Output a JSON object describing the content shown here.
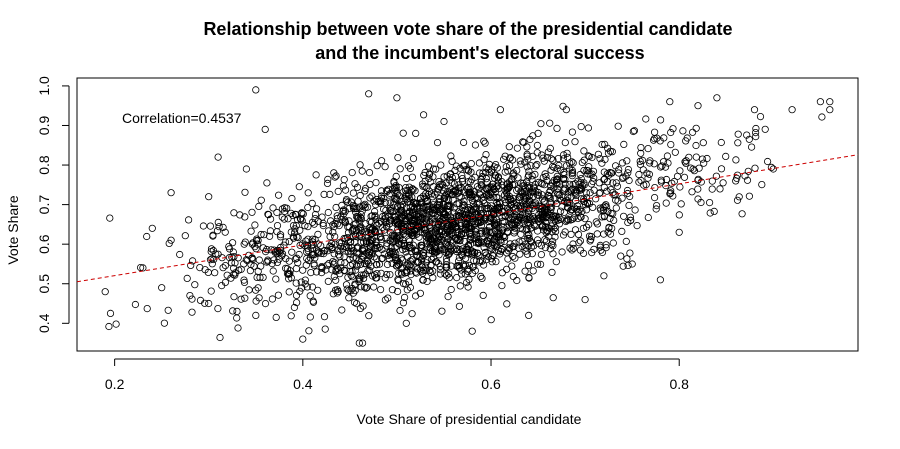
{
  "chart_data": {
    "type": "scatter",
    "title_line1": "Relationship between vote share of the presidential candidate",
    "title_line2": "and the incumbent's electoral success",
    "xlabel": "Vote Share of presidential candidate",
    "ylabel": "Vote Share",
    "xlim": [
      0.16,
      0.99
    ],
    "ylim": [
      0.33,
      1.02
    ],
    "x_ticks": [
      "0.2",
      "0.4",
      "0.6",
      "0.8"
    ],
    "y_ticks": [
      "0.4",
      "0.5",
      "0.6",
      "0.7",
      "0.8",
      "0.9",
      "1.0"
    ],
    "annotation": "Correlation=0.4537",
    "grid": false,
    "legend": "none",
    "regression_line": {
      "x": [
        0.16,
        0.99
      ],
      "y": [
        0.505,
        0.826
      ],
      "color": "#cc0000",
      "style": "dashed"
    },
    "point_color": "#000000",
    "point_style": "open circle",
    "approx_point_count": 2400,
    "points_sample": [
      [
        0.19,
        0.48
      ],
      [
        0.23,
        0.54
      ],
      [
        0.24,
        0.64
      ],
      [
        0.25,
        0.49
      ],
      [
        0.26,
        0.61
      ],
      [
        0.26,
        0.73
      ],
      [
        0.28,
        0.47
      ],
      [
        0.3,
        0.45
      ],
      [
        0.3,
        0.72
      ],
      [
        0.31,
        0.82
      ],
      [
        0.33,
        0.43
      ],
      [
        0.34,
        0.79
      ],
      [
        0.35,
        0.99
      ],
      [
        0.35,
        0.42
      ],
      [
        0.36,
        0.89
      ],
      [
        0.4,
        0.36
      ],
      [
        0.46,
        0.35
      ],
      [
        0.47,
        0.98
      ],
      [
        0.5,
        0.97
      ],
      [
        0.51,
        0.4
      ],
      [
        0.52,
        0.88
      ],
      [
        0.55,
        0.91
      ],
      [
        0.58,
        0.38
      ],
      [
        0.61,
        0.94
      ],
      [
        0.64,
        0.42
      ],
      [
        0.65,
        0.88
      ],
      [
        0.68,
        0.94
      ],
      [
        0.7,
        0.46
      ],
      [
        0.72,
        0.52
      ],
      [
        0.75,
        0.55
      ],
      [
        0.78,
        0.51
      ],
      [
        0.79,
        0.96
      ],
      [
        0.8,
        0.63
      ],
      [
        0.82,
        0.95
      ],
      [
        0.84,
        0.97
      ],
      [
        0.86,
        0.76
      ],
      [
        0.88,
        0.94
      ],
      [
        0.9,
        0.79
      ],
      [
        0.92,
        0.94
      ],
      [
        0.95,
        0.96
      ],
      [
        0.96,
        0.94
      ],
      [
        0.96,
        0.96
      ]
    ]
  }
}
